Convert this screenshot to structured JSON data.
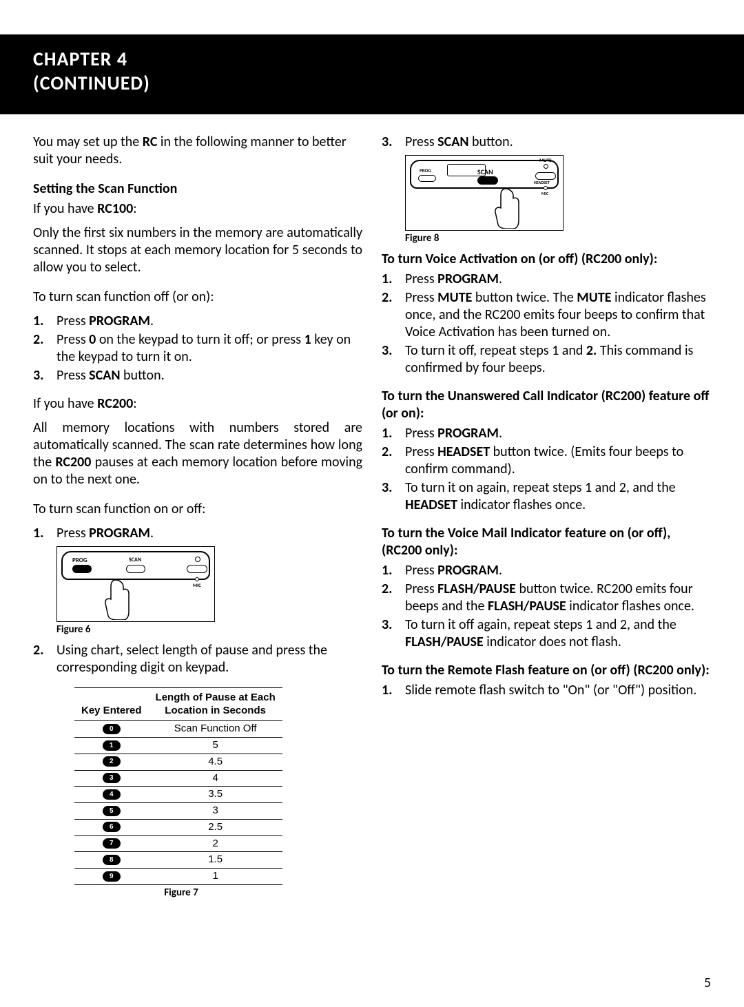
{
  "header": {
    "line1": "CHAPTER 4",
    "line2": "(CONTINUED)"
  },
  "left": {
    "intro_pre": "You may set up the ",
    "intro_rc": "RC",
    "intro_post": " in the following manner to better suit your needs.",
    "scan_h": "Setting the Scan Function",
    "rc100_pre": "If you have ",
    "rc100_b": "RC100",
    "rc100_post": ":",
    "rc100_body": "Only the first six numbers in the memory are automatically scanned. It stops at each memory location for 5 seconds to allow you to select.",
    "scan_off_on": "To turn scan function off (or on):",
    "s1_num": "1.",
    "s1_pre": "Press ",
    "s1_b": "PROGRAM",
    "s1_post": ".",
    "s2_num": "2.",
    "s2_pre": "Press ",
    "s2_b": "0",
    "s2_mid": " on the keypad to turn it off; or press ",
    "s2_b2": "1",
    "s2_post": " key on the keypad to turn it on.",
    "s3_num": "3.",
    "s3_pre": "Press ",
    "s3_b": "SCAN",
    "s3_post": " button.",
    "rc200_pre": "If you have ",
    "rc200_b": "RC200",
    "rc200_post": ":",
    "rc200_body_a": "All memory locations with numbers stored are automatically scanned. The scan rate determines how long the ",
    "rc200_body_b": "RC200",
    "rc200_body_c": " pauses at each memory location before moving on to the next one.",
    "scan_on_off": "To turn scan function on or off:",
    "t1_num": "1.",
    "t1_pre": "Press ",
    "t1_b": "PROGRAM",
    "t1_post": ".",
    "fig6_cap": "Figure 6",
    "t2_num": "2.",
    "t2_txt": "Using chart, select length of pause and press the corresponding digit on keypad.",
    "table": {
      "head_key": "Key Entered",
      "head_len1": "Length of Pause at Each",
      "head_len2": "Location in Seconds",
      "rows": [
        {
          "k": "0",
          "v": "Scan Function Off"
        },
        {
          "k": "1",
          "v": "5"
        },
        {
          "k": "2",
          "v": "4.5"
        },
        {
          "k": "3",
          "v": "4"
        },
        {
          "k": "4",
          "v": "3.5"
        },
        {
          "k": "5",
          "v": "3"
        },
        {
          "k": "6",
          "v": "2.5"
        },
        {
          "k": "7",
          "v": "2"
        },
        {
          "k": "8",
          "v": "1.5"
        },
        {
          "k": "9",
          "v": "1"
        }
      ]
    },
    "fig7_cap": "Figure 7"
  },
  "right": {
    "r3_num": "3.",
    "r3_pre": "Press ",
    "r3_b": "SCAN",
    "r3_post": " button.",
    "fig8_cap": "Figure 8",
    "va_h": "To turn Voice Activation on (or off) (RC200 only):",
    "va1_num": "1.",
    "va1_pre": "Press ",
    "va1_b": "PROGRAM",
    "va1_post": ".",
    "va2_num": "2.",
    "va2_pre": "Press ",
    "va2_b": "MUTE",
    "va2_mid": " button twice. The ",
    "va2_b2": "MUTE",
    "va2_post": " indicator flashes once, and the RC200 emits four beeps to confirm that Voice Activation has been turned on.",
    "va3_num": "3.",
    "va3_pre": "To turn it off, repeat steps 1 and ",
    "va3_b": "2.",
    "va3_post": " This command is confirmed by four beeps.",
    "uc_h": "To turn the Unanswered Call Indicator (RC200) feature off (or on):",
    "uc1_num": "1.",
    "uc1_pre": "Press ",
    "uc1_b": "PROGRAM",
    "uc1_post": ".",
    "uc2_num": "2.",
    "uc2_pre": "Press ",
    "uc2_b": "HEADSET",
    "uc2_post": " button twice. (Emits four beeps to confirm command).",
    "uc3_num": "3.",
    "uc3_pre": "To turn it on again, repeat steps 1 and 2, and the ",
    "uc3_b": "HEADSET",
    "uc3_post": " indicator flashes once.",
    "vm_h": "To turn the Voice Mail Indicator feature on (or off), (RC200 only):",
    "vm1_num": "1.",
    "vm1_pre": "Press ",
    "vm1_b": "PROGRAM",
    "vm1_post": ".",
    "vm2_num": "2.",
    "vm2_pre": "Press ",
    "vm2_b": "FLASH/PAUSE",
    "vm2_mid": " button twice. RC200 emits four beeps and the ",
    "vm2_b2": "FLASH/PAUSE",
    "vm2_post": " indicator flashes once.",
    "vm3_num": "3.",
    "vm3_pre": "To turn it off again, repeat steps 1 and 2, and the ",
    "vm3_b": "FLASH/PAUSE",
    "vm3_post": " indicator does not flash.",
    "rf_h": "To turn the Remote Flash feature on (or off) (RC200 only):",
    "rf1_num": "1.",
    "rf1_txt": "Slide remote flash switch to \"On\" (or \"Off\") position."
  },
  "fig_labels": {
    "prog": "PROG",
    "scan": "SCAN",
    "mute": "MUTE",
    "headset": "HEADSET",
    "mic": "MIC"
  },
  "page_number": "5"
}
